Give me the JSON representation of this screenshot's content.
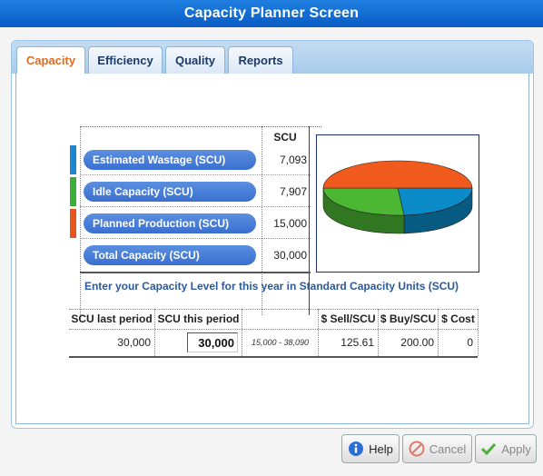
{
  "window": {
    "title": "Capacity Planner Screen"
  },
  "tabs": [
    {
      "label": "Capacity",
      "active": true
    },
    {
      "label": "Efficiency",
      "active": false
    },
    {
      "label": "Quality",
      "active": false
    },
    {
      "label": "Reports",
      "active": false
    }
  ],
  "summary": {
    "column_header": "SCU",
    "rows": [
      {
        "label": "Estimated Wastage (SCU)",
        "value": "7,093",
        "color": "#1a87cf"
      },
      {
        "label": "Idle Capacity (SCU)",
        "value": "7,907",
        "color": "#3cae3a"
      },
      {
        "label": "Planned Production (SCU)",
        "value": "15,000",
        "color": "#e8541e"
      },
      {
        "label": "Total Capacity (SCU)",
        "value": "30,000",
        "color": null
      }
    ]
  },
  "chart_data": {
    "type": "pie",
    "categories": [
      "Estimated Wastage (SCU)",
      "Idle Capacity (SCU)",
      "Planned Production (SCU)"
    ],
    "values": [
      7093,
      7907,
      15000
    ],
    "colors": [
      "#0b8bc8",
      "#4cb733",
      "#f05a1c"
    ]
  },
  "prompt": "Enter your Capacity Level for this year in Standard Capacity Units (SCU)",
  "input_table": {
    "headers": [
      "SCU last period",
      "SCU this period",
      "",
      "$ Sell/SCU",
      "$ Buy/SCU",
      "$ Cost"
    ],
    "scu_last_period": "30,000",
    "scu_this_period": "30,000",
    "range": "15,000 - 38,090",
    "sell_per_scu": "125.61",
    "buy_per_scu": "200.00",
    "cost": "0"
  },
  "buttons": {
    "help": "Help",
    "cancel": "Cancel",
    "apply": "Apply"
  }
}
